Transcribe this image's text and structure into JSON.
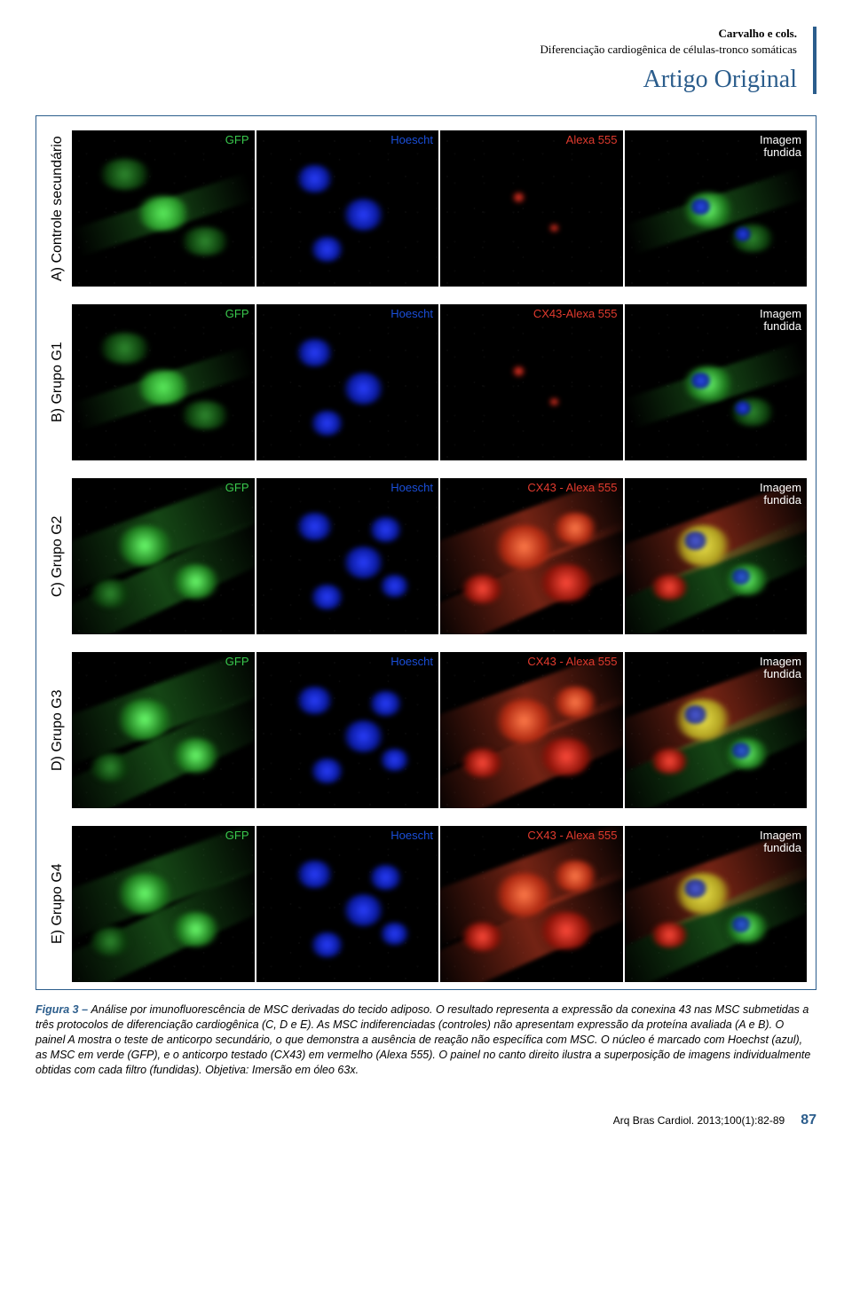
{
  "header": {
    "authors": "Carvalho e cols.",
    "subtitle": "Diferenciação cardiogênica de células-tronco somáticas",
    "section_type": "Artigo Original"
  },
  "figure": {
    "col_labels": {
      "gfp": "GFP",
      "hoescht": "Hoescht",
      "alexa": "Alexa 555",
      "cx43": "CX43-Alexa 555",
      "cx43dash": "CX43 - Alexa 555",
      "merged": "Imagem\nfundida"
    },
    "colors": {
      "gfp": "#39c84d",
      "hoescht": "#1a4ed8",
      "alexa": "#e03a2e",
      "merged": "#ffffff",
      "frame": "#2b5d8c"
    },
    "rows": [
      {
        "label": "A) Controle secundário",
        "ch3": "alexa",
        "intensity": "low"
      },
      {
        "label": "B) Grupo G1",
        "ch3": "cx43",
        "intensity": "low"
      },
      {
        "label": "C) Grupo G2",
        "ch3": "cx43dash",
        "intensity": "high"
      },
      {
        "label": "D) Grupo G3",
        "ch3": "cx43dash",
        "intensity": "high"
      },
      {
        "label": "E) Grupo G4",
        "ch3": "cx43dash",
        "intensity": "high"
      }
    ]
  },
  "caption": {
    "lead": "Figura 3 – ",
    "body": "Análise por imunofluorescência de MSC derivadas do tecido adiposo. O resultado representa a expressão da conexina 43 nas MSC submetidas a três protocolos de diferenciação cardiogênica (C, D e E). As MSC indiferenciadas (controles) não apresentam expressão da proteína avaliada (A e B). O painel A mostra o teste de anticorpo secundário, o que demonstra a ausência de reação não específica com MSC. O núcleo é marcado com Hoechst (azul), as MSC em verde (GFP), e o anticorpo testado (CX43) em vermelho (Alexa 555). O painel no canto direito ilustra a superposição de imagens individualmente obtidas com cada filtro (fundidas). Objetiva: Imersão em óleo 63x."
  },
  "footer": {
    "citation": "Arq Bras Cardiol. 2013;100(1):82-89",
    "page": "87"
  }
}
